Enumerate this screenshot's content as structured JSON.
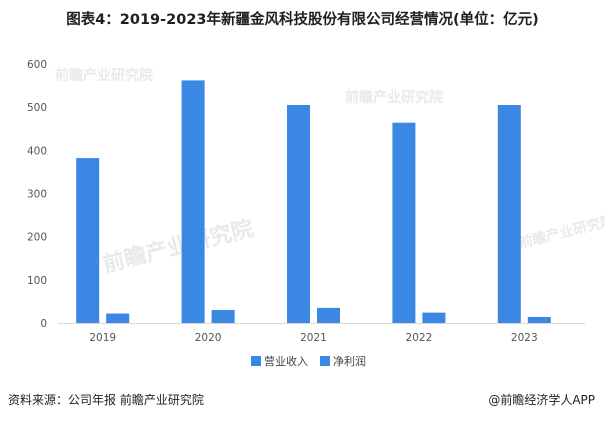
{
  "title": "图表4：2019-2023年新疆金风科技股份有限公司经营情况(单位：亿元)",
  "footer": {
    "source": "资料来源：公司年报 前瞻产业研究院",
    "brand": "@前瞻经济学人APP"
  },
  "watermark": "前瞻产业研究院",
  "colors": {
    "revenue": "#3a87e4",
    "profit": "#3a87e4"
  },
  "chart_data": {
    "type": "bar",
    "categories": [
      "2019",
      "2020",
      "2021",
      "2022",
      "2023"
    ],
    "series": [
      {
        "name": "营业收入",
        "values": [
          382,
          562,
          505,
          464,
          505
        ]
      },
      {
        "name": "净利润",
        "values": [
          22,
          30,
          35,
          24,
          14
        ]
      }
    ],
    "ylim": [
      0,
      600
    ],
    "yticks": [
      0,
      100,
      200,
      300,
      400,
      500,
      600
    ],
    "grid": false,
    "legend": "bottom"
  }
}
